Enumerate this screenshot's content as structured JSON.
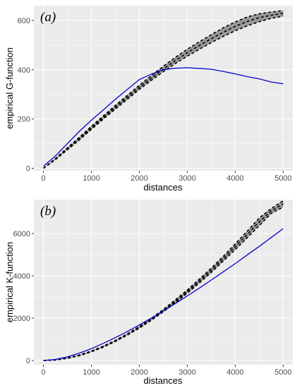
{
  "chart_data": [
    {
      "type": "line",
      "tag": "(a)",
      "xlabel": "distances",
      "ylabel": "empirical G-function",
      "xlim": [
        -200,
        5200
      ],
      "ylim": [
        -10,
        660
      ],
      "xticks": [
        0,
        1000,
        2000,
        3000,
        4000,
        5000
      ],
      "yticks": [
        0,
        200,
        400,
        600
      ],
      "grid": true,
      "colors": {
        "background": "#ebebeb",
        "grid": "#ffffff",
        "observed": "#0000cc",
        "envelope": "#999999",
        "envelope_line": "#000000"
      },
      "x": [
        0,
        250,
        500,
        750,
        1000,
        1250,
        1500,
        1750,
        2000,
        2250,
        2500,
        2750,
        3000,
        3250,
        3500,
        3750,
        4000,
        4250,
        4500,
        4750,
        5000
      ],
      "series": [
        {
          "role": "observed",
          "values": [
            8,
            50,
            100,
            150,
            195,
            237,
            280,
            320,
            360,
            382,
            400,
            406,
            408,
            405,
            402,
            393,
            383,
            372,
            363,
            350,
            343
          ]
        },
        {
          "role": "envelope_low",
          "values": [
            0,
            35,
            75,
            115,
            158,
            200,
            240,
            280,
            320,
            357,
            392,
            425,
            455,
            483,
            510,
            535,
            558,
            578,
            595,
            608,
            618
          ]
        },
        {
          "role": "envelope_high",
          "values": [
            0,
            40,
            83,
            126,
            170,
            213,
            255,
            296,
            337,
            376,
            414,
            450,
            483,
            513,
            542,
            570,
            594,
            614,
            627,
            634,
            640
          ]
        },
        {
          "role": "envelope_mean",
          "values": [
            0,
            37,
            79,
            120,
            164,
            206,
            248,
            288,
            328,
            366,
            403,
            437,
            469,
            498,
            526,
            552,
            576,
            596,
            611,
            621,
            629
          ]
        }
      ]
    },
    {
      "type": "line",
      "tag": "(b)",
      "xlabel": "distances",
      "ylabel": "empirical K-function",
      "xlim": [
        -200,
        5200
      ],
      "ylim": [
        -200,
        7600
      ],
      "xticks": [
        0,
        1000,
        2000,
        3000,
        4000,
        5000
      ],
      "yticks": [
        0,
        2000,
        4000,
        6000
      ],
      "grid": true,
      "colors": {
        "background": "#ebebeb",
        "grid": "#ffffff",
        "observed": "#0000cc",
        "envelope": "#999999",
        "envelope_line": "#000000"
      },
      "x": [
        0,
        250,
        500,
        750,
        1000,
        1250,
        1500,
        1750,
        2000,
        2250,
        2500,
        2750,
        3000,
        3250,
        3500,
        3750,
        4000,
        4250,
        4500,
        4750,
        5000
      ],
      "series": [
        {
          "role": "observed",
          "values": [
            0,
            50,
            170,
            350,
            560,
            810,
            1080,
            1370,
            1680,
            2000,
            2340,
            2690,
            3050,
            3420,
            3800,
            4190,
            4580,
            4990,
            5390,
            5810,
            6230
          ]
        },
        {
          "role": "envelope_low",
          "values": [
            0,
            20,
            100,
            225,
            410,
            630,
            900,
            1200,
            1530,
            1900,
            2300,
            2720,
            3180,
            3660,
            4160,
            4700,
            5240,
            5800,
            6370,
            6950,
            7250
          ]
        },
        {
          "role": "envelope_high",
          "values": [
            0,
            30,
            120,
            260,
            450,
            680,
            950,
            1260,
            1610,
            1990,
            2410,
            2860,
            3330,
            3840,
            4360,
            4920,
            5510,
            6110,
            6730,
            7180,
            7550
          ]
        },
        {
          "role": "envelope_mean",
          "values": [
            0,
            25,
            110,
            242,
            430,
            655,
            925,
            1230,
            1570,
            1945,
            2355,
            2790,
            3255,
            3750,
            4260,
            4810,
            5375,
            5955,
            6550,
            7065,
            7400
          ]
        }
      ]
    }
  ]
}
